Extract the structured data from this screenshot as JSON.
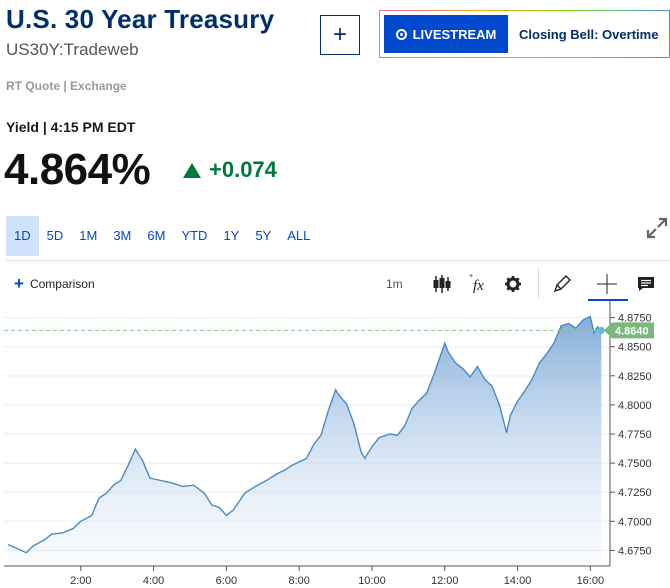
{
  "header": {
    "title": "U.S. 30 Year Treasury",
    "symbol": "US30Y:Tradeweb",
    "add_label": "+",
    "livestream_label": "LIVESTREAM",
    "show_label": "Closing Bell: Overtime"
  },
  "quote": {
    "source": "RT Quote | Exchange",
    "time_label": "Yield | 4:15 PM EDT",
    "price": "4.864%",
    "change": "+0.074"
  },
  "ranges": [
    "1D",
    "5D",
    "1M",
    "3M",
    "6M",
    "YTD",
    "1Y",
    "5Y",
    "ALL"
  ],
  "active_range": "1D",
  "toolbar": {
    "comparison_label": "Comparison",
    "interval_label": "1m"
  },
  "colors": {
    "brand": "#002f6c",
    "accent": "#0049cc",
    "up": "#00773d",
    "line": "#4a8ac4",
    "last_tag": "#7cb87c"
  },
  "chart_data": {
    "type": "area",
    "x_ticks": [
      "2:00",
      "4:00",
      "6:00",
      "8:00",
      "10:00",
      "12:00",
      "14:00",
      "16:00"
    ],
    "x_hours": [
      2,
      4,
      6,
      8,
      10,
      12,
      14,
      16
    ],
    "y_ticks": [
      "4.8750",
      "4.8500",
      "4.8250",
      "4.8000",
      "4.7750",
      "4.7500",
      "4.7250",
      "4.7000",
      "4.6750"
    ],
    "ylim": [
      4.665,
      4.885
    ],
    "xlim": [
      0.0,
      16.65
    ],
    "last_value_label": "4.8640",
    "last_value": 4.864,
    "points": [
      [
        0.0,
        4.68
      ],
      [
        0.3,
        4.676
      ],
      [
        0.5,
        4.673
      ],
      [
        0.7,
        4.679
      ],
      [
        1.0,
        4.684
      ],
      [
        1.2,
        4.689
      ],
      [
        1.5,
        4.69
      ],
      [
        1.8,
        4.694
      ],
      [
        2.0,
        4.7
      ],
      [
        2.3,
        4.705
      ],
      [
        2.5,
        4.72
      ],
      [
        2.7,
        4.724
      ],
      [
        2.9,
        4.731
      ],
      [
        3.1,
        4.735
      ],
      [
        3.3,
        4.748
      ],
      [
        3.5,
        4.762
      ],
      [
        3.7,
        4.752
      ],
      [
        3.9,
        4.737
      ],
      [
        4.2,
        4.735
      ],
      [
        4.5,
        4.733
      ],
      [
        4.8,
        4.73
      ],
      [
        5.1,
        4.731
      ],
      [
        5.4,
        4.724
      ],
      [
        5.6,
        4.714
      ],
      [
        5.8,
        4.712
      ],
      [
        6.0,
        4.705
      ],
      [
        6.2,
        4.71
      ],
      [
        6.5,
        4.724
      ],
      [
        6.8,
        4.73
      ],
      [
        7.1,
        4.735
      ],
      [
        7.4,
        4.741
      ],
      [
        7.6,
        4.744
      ],
      [
        7.8,
        4.748
      ],
      [
        8.0,
        4.751
      ],
      [
        8.2,
        4.754
      ],
      [
        8.4,
        4.766
      ],
      [
        8.6,
        4.774
      ],
      [
        8.8,
        4.795
      ],
      [
        9.0,
        4.813
      ],
      [
        9.1,
        4.808
      ],
      [
        9.3,
        4.801
      ],
      [
        9.5,
        4.784
      ],
      [
        9.7,
        4.76
      ],
      [
        9.8,
        4.754
      ],
      [
        10.0,
        4.764
      ],
      [
        10.2,
        4.772
      ],
      [
        10.5,
        4.775
      ],
      [
        10.7,
        4.774
      ],
      [
        10.9,
        4.782
      ],
      [
        11.1,
        4.797
      ],
      [
        11.3,
        4.804
      ],
      [
        11.5,
        4.81
      ],
      [
        11.7,
        4.826
      ],
      [
        11.9,
        4.844
      ],
      [
        12.0,
        4.853
      ],
      [
        12.1,
        4.845
      ],
      [
        12.3,
        4.836
      ],
      [
        12.5,
        4.831
      ],
      [
        12.7,
        4.824
      ],
      [
        12.9,
        4.833
      ],
      [
        13.1,
        4.822
      ],
      [
        13.3,
        4.816
      ],
      [
        13.5,
        4.8
      ],
      [
        13.7,
        4.776
      ],
      [
        13.8,
        4.791
      ],
      [
        14.0,
        4.803
      ],
      [
        14.2,
        4.812
      ],
      [
        14.4,
        4.822
      ],
      [
        14.6,
        4.836
      ],
      [
        14.8,
        4.844
      ],
      [
        15.0,
        4.853
      ],
      [
        15.2,
        4.868
      ],
      [
        15.4,
        4.87
      ],
      [
        15.6,
        4.866
      ],
      [
        15.8,
        4.873
      ],
      [
        16.0,
        4.876
      ],
      [
        16.1,
        4.862
      ],
      [
        16.2,
        4.867
      ],
      [
        16.3,
        4.864
      ]
    ]
  }
}
